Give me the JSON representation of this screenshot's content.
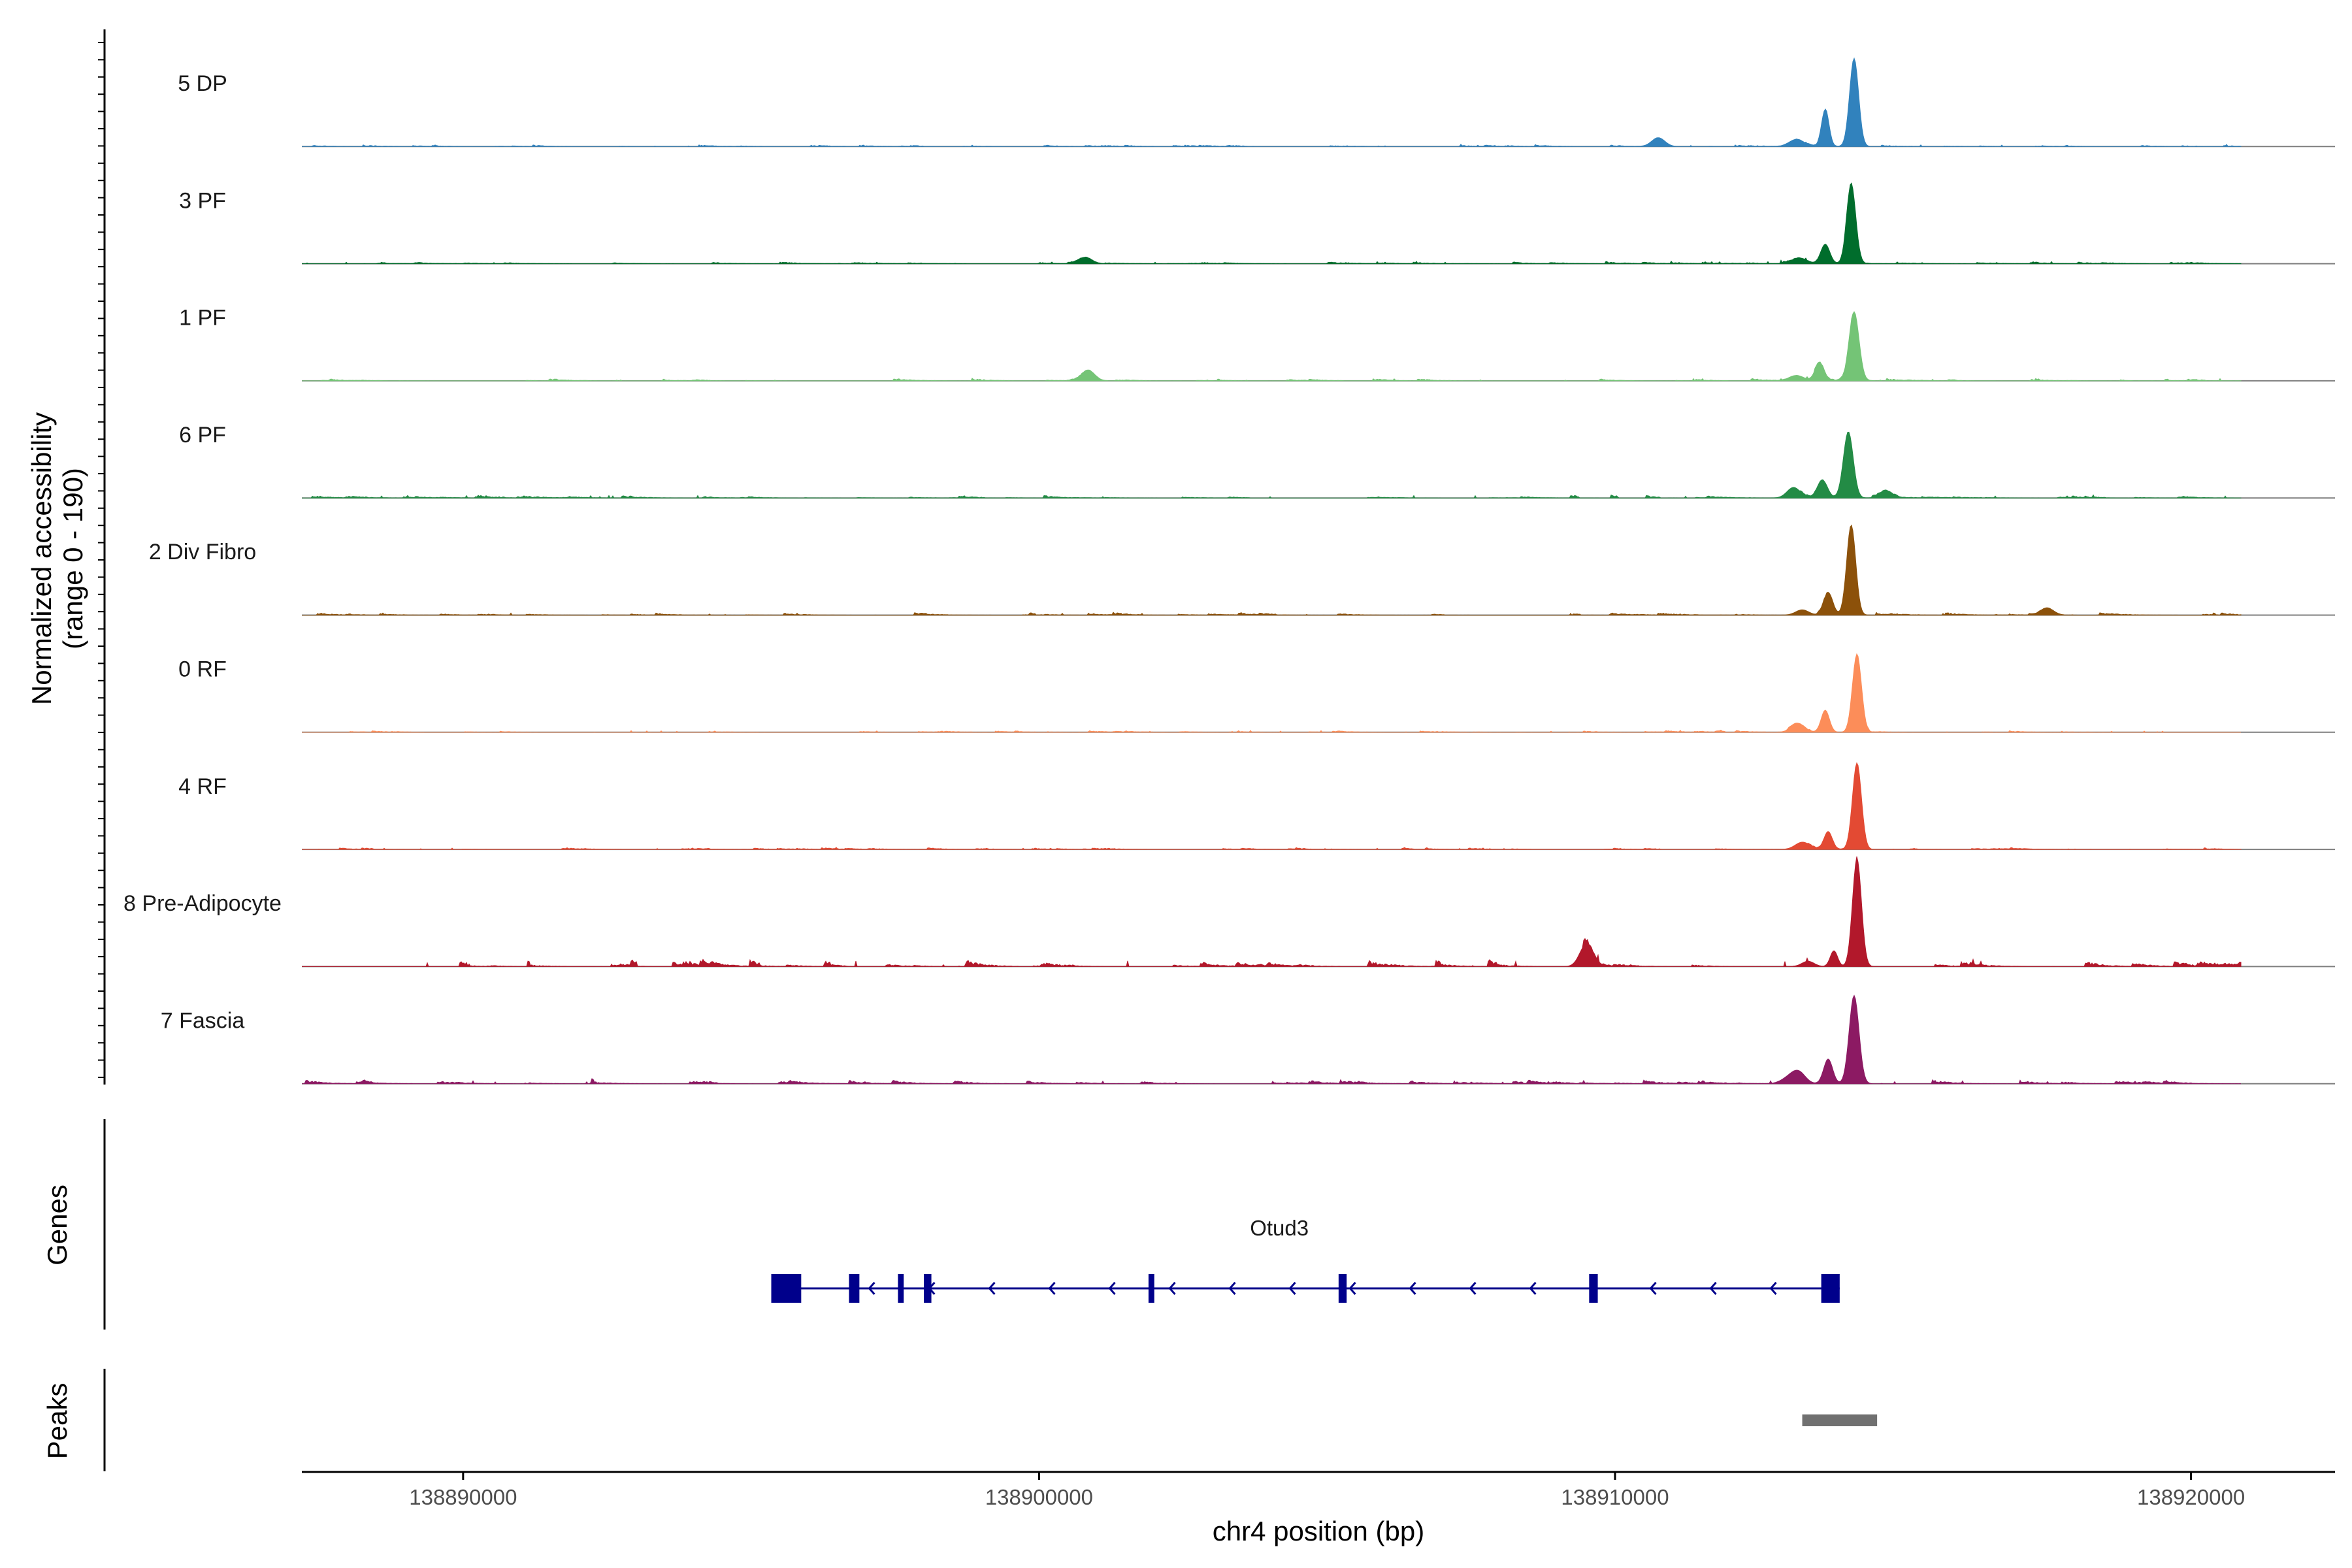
{
  "chart_data": {
    "type": "area",
    "subtype": "genome-coverage-track",
    "ylabel_line1": "Normalized accessibility",
    "ylabel_line2": "(range 0 - 190)",
    "y_range": [
      0,
      190
    ],
    "xlabel": "chr4 position (bp)",
    "x_range": [
      138887200,
      138922500
    ],
    "x_ticks": [
      138890000,
      138900000,
      138910000,
      138920000
    ],
    "x_tick_labels": [
      "138890000",
      "138900000",
      "138910000",
      "138920000"
    ],
    "tracks": [
      {
        "name": "5 DP",
        "color": "#3182bd",
        "bump_bp": 138910750,
        "bump_h": 0.1,
        "noise": 0.02,
        "peaks": [
          [
            138913650,
            0.42,
            90
          ],
          [
            138914150,
            1.0,
            110
          ],
          [
            138913150,
            0.08,
            180
          ]
        ]
      },
      {
        "name": "3 PF",
        "color": "#006d2c",
        "bump_bp": 138900800,
        "bump_h": 0.07,
        "noise": 0.025,
        "peaks": [
          [
            138913650,
            0.22,
            110
          ],
          [
            138914100,
            0.9,
            110
          ],
          [
            138913200,
            0.06,
            180
          ]
        ]
      },
      {
        "name": "1 PF",
        "color": "#74c476",
        "bump_bp": 138900850,
        "bump_h": 0.12,
        "noise": 0.03,
        "peaks": [
          [
            138913550,
            0.2,
            110
          ],
          [
            138914150,
            0.78,
            120
          ],
          [
            138913150,
            0.06,
            180
          ]
        ]
      },
      {
        "name": "6 PF",
        "color": "#238b45",
        "bump_bp": 138913100,
        "bump_h": 0.12,
        "noise": 0.035,
        "peaks": [
          [
            138913600,
            0.2,
            120
          ],
          [
            138914050,
            0.75,
            120
          ],
          [
            138914700,
            0.08,
            150
          ]
        ]
      },
      {
        "name": "2 Div Fibro",
        "color": "#8c510a",
        "bump_bp": 138917500,
        "bump_h": 0.08,
        "noise": 0.03,
        "peaks": [
          [
            138913700,
            0.25,
            110
          ],
          [
            138914100,
            1.02,
            110
          ],
          [
            138913250,
            0.06,
            160
          ]
        ]
      },
      {
        "name": "0 RF",
        "color": "#fc8d59",
        "bump_bp": 138913200,
        "bump_h": 0.05,
        "noise": 0.02,
        "peaks": [
          [
            138913650,
            0.25,
            100
          ],
          [
            138914200,
            0.88,
            110
          ],
          [
            138913150,
            0.05,
            160
          ]
        ]
      },
      {
        "name": "4 RF",
        "color": "#e34a33",
        "bump_bp": 138913200,
        "bump_h": 0.04,
        "noise": 0.02,
        "peaks": [
          [
            138913700,
            0.2,
            100
          ],
          [
            138914200,
            0.98,
            110
          ],
          [
            138913300,
            0.05,
            160
          ]
        ]
      },
      {
        "name": "8 Pre-Adipocyte",
        "color": "#b2182b",
        "bump_bp": 138909500,
        "bump_h": 0.25,
        "noise": 0.08,
        "peaks": [
          [
            138913800,
            0.18,
            90
          ],
          [
            138914200,
            1.22,
            110
          ],
          [
            138913350,
            0.06,
            150
          ]
        ]
      },
      {
        "name": "7 Fascia",
        "color": "#8c1a63",
        "bump_bp": 138913200,
        "bump_h": 0.1,
        "noise": 0.045,
        "peaks": [
          [
            138913700,
            0.28,
            110
          ],
          [
            138914150,
            1.0,
            120
          ],
          [
            138913050,
            0.08,
            200
          ]
        ]
      }
    ],
    "genes_label": "Genes",
    "gene": {
      "name": "Otud3",
      "start": 138895350,
      "end": 138913900,
      "strand": "-",
      "color": "#00008b",
      "exons": [
        [
          138895350,
          138895870
        ],
        [
          138896700,
          138896880
        ],
        [
          138897550,
          138897650
        ],
        [
          138898000,
          138898130
        ],
        [
          138901900,
          138902000
        ],
        [
          138905200,
          138905340
        ],
        [
          138909550,
          138909700
        ],
        [
          138913580,
          138913900
        ]
      ]
    },
    "peaks_label": "Peaks",
    "peak_regions": [
      [
        138913250,
        138914550
      ]
    ],
    "peak_color": "#707070"
  }
}
